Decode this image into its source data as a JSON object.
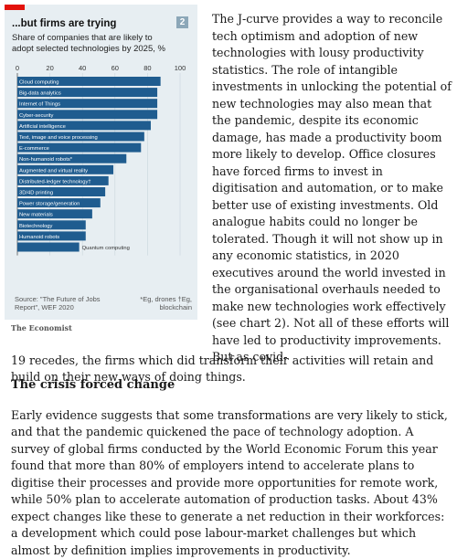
{
  "chart": {
    "number": "2",
    "title": "...but firms are trying",
    "subtitle": "Share of companies that are likely to adopt selected technologies by 2025, %",
    "source": "Source: \"The Future of Jobs Report\", WEF 2020",
    "footnotes": "*Eg, drones †Eg, blockchain",
    "publisher": "The Economist"
  },
  "chart_data": {
    "type": "bar",
    "orientation": "horizontal",
    "categories": [
      "Cloud computing",
      "Big-data analytics",
      "Internet of Things",
      "Cyber-security",
      "Artificial intelligence",
      "Text, image and voice processing",
      "E-commerce",
      "Non-humanoid robots*",
      "Augmented and virtual reality",
      "Distributed-ledger technology†",
      "3D/4D printing",
      "Power storage/generation",
      "New materials",
      "Biotechnology",
      "Humanoid robots",
      "Quantum computing"
    ],
    "values": [
      88,
      86,
      86,
      86,
      82,
      78,
      76,
      67,
      59,
      56,
      54,
      51,
      46,
      42,
      42,
      38
    ],
    "title": "...but firms are trying",
    "subtitle": "Share of companies that are likely to adopt selected technologies by 2025, %",
    "xticks": [
      "0",
      "20",
      "40",
      "60",
      "80",
      "100"
    ],
    "xlim": [
      0,
      100
    ],
    "grid": true,
    "bar_color": "#1f5c8f",
    "label_position": "inside-bar"
  },
  "article": {
    "para1": "The J-curve provides a way to reconcile tech optimism and adoption of new technologies with lousy productivity statistics. The role of intangible investments in unlocking the potential of new technologies may also mean that the pandemic, despite its economic damage, has made a productivity boom more likely to develop. Office closures have forced firms to invest in digitisation and automation, or to make better use of existing investments. Old analogue habits could no longer be tolerated. Though it will not show up in any economic statistics, in 2020 executives around the world invested in the organisational overhauls needed to make new technologies work effectively (see chart 2). Not all of these efforts will have led to productivity improvements. But as covid-",
    "para1_cont": "19 recedes, the firms which did transform their activities will retain and build on their new ways of doing things.",
    "heading": "The crisis forced change",
    "para2": "Early evidence suggests that some transformations are very likely to stick, and that the pandemic quickened the pace of technology adoption. A survey of global firms conducted by the World Economic Forum this year found that more than 80% of employers intend to accelerate plans to digitise their processes and provide more opportunities for remote work, while 50% plan to accelerate automation of production tasks. About 43% expect changes like these to generate a net reduction in their workforces: a development which could pose labour-market challenges but which almost by definition implies improvements in productivity."
  }
}
